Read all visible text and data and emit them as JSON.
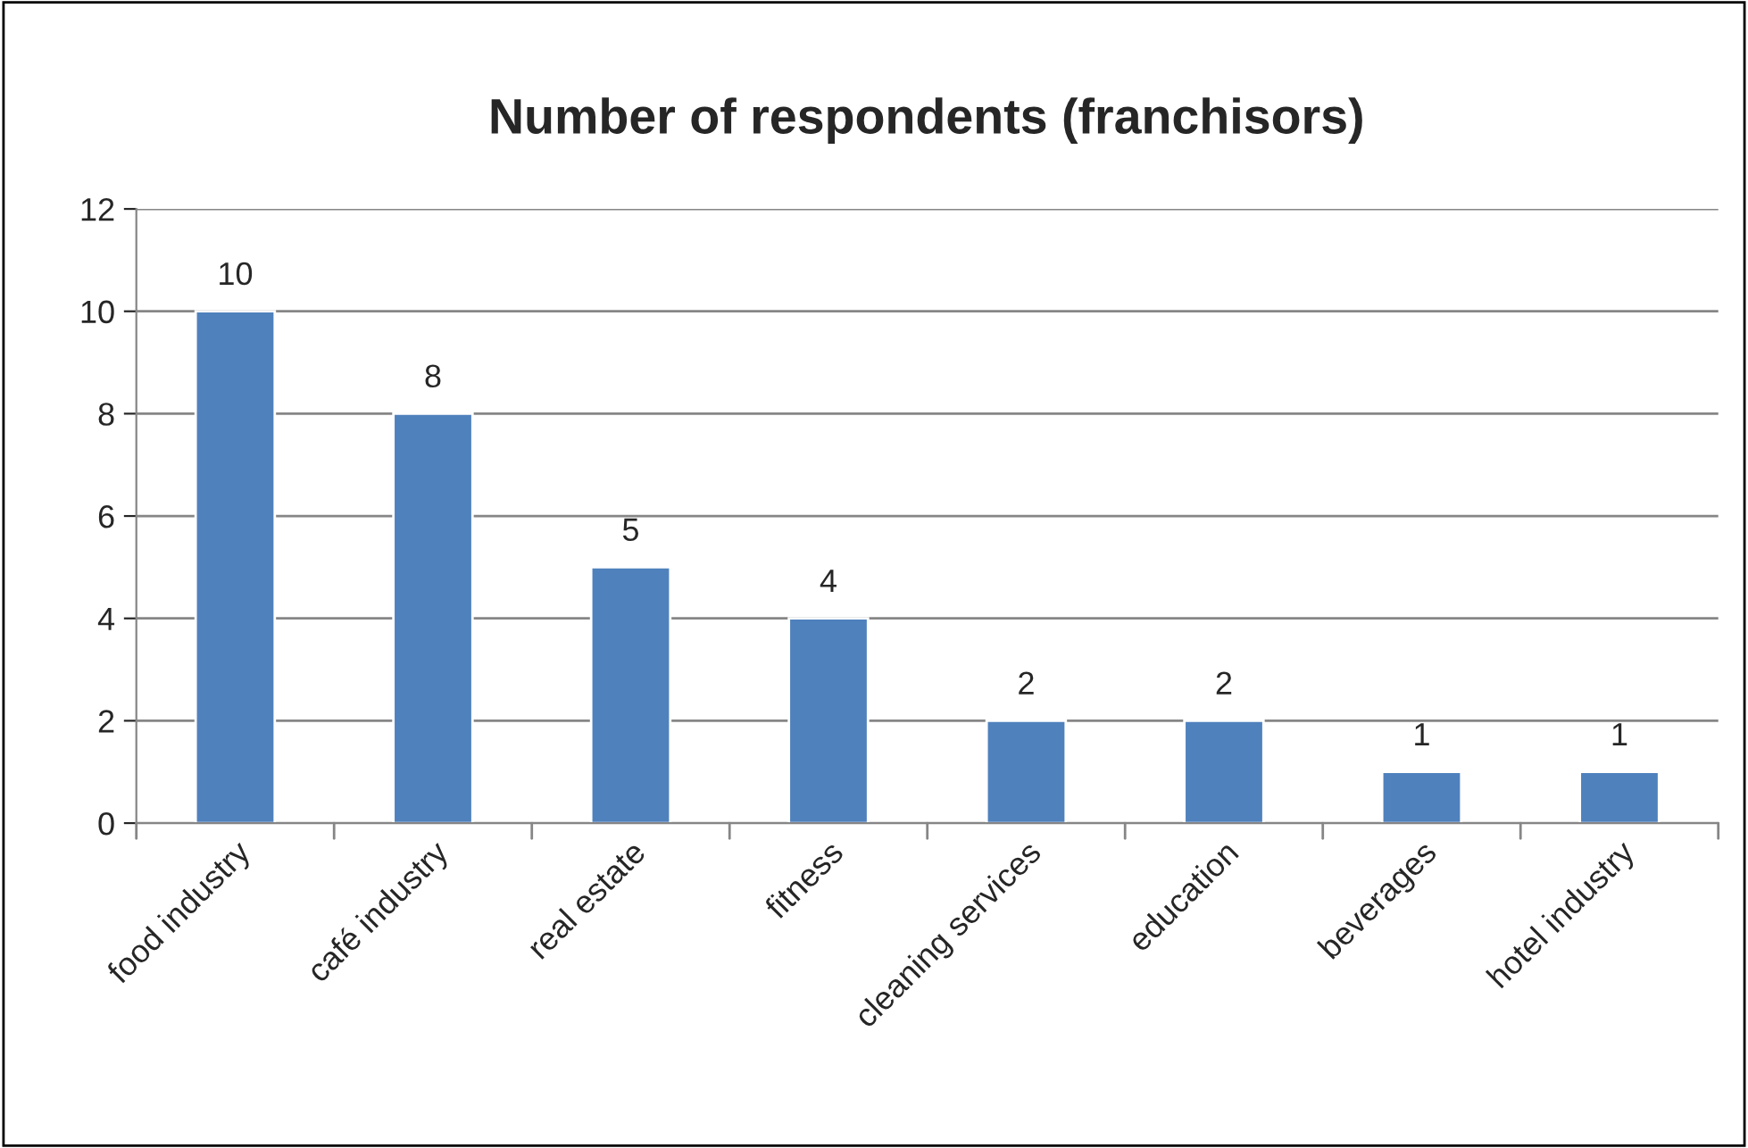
{
  "chart_data": {
    "type": "bar",
    "title": "Number of respondents (franchisors)",
    "categories": [
      "food industry",
      "café industry",
      "real estate",
      "fitness",
      "cleaning services",
      "education",
      "beverages",
      "hotel industry"
    ],
    "values": [
      10,
      8,
      5,
      4,
      2,
      2,
      1,
      1
    ],
    "color": "#4f81bd",
    "ylim": [
      0,
      12
    ],
    "yticks": [
      0,
      2,
      4,
      6,
      8,
      10,
      12
    ],
    "grid": "y",
    "data_labels": true
  }
}
